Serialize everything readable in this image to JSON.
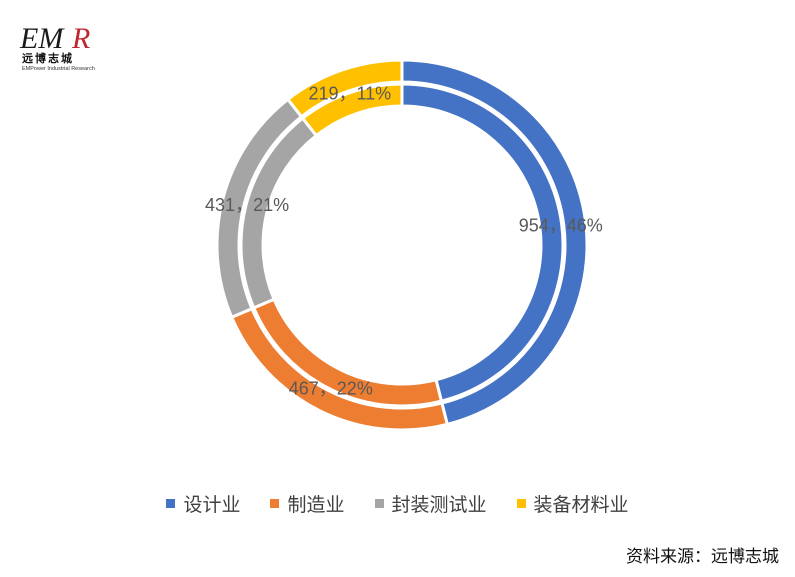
{
  "logo": {
    "mark_left": "EM",
    "mark_right": "R",
    "cn": "远博志城",
    "en": "EMPower Industrial Research",
    "colors": {
      "dark": "#1a1a1a",
      "accent": "#c0262d"
    }
  },
  "chart_data": {
    "type": "doughnut",
    "rings": 2,
    "categories": [
      "设计业",
      "制造业",
      "封装测试业",
      "装备材料业"
    ],
    "values": [
      954,
      467,
      431,
      219
    ],
    "percents": [
      46,
      22,
      21,
      11
    ],
    "labels": [
      "954，46%",
      "467，22%",
      "431，21%",
      "219，11%"
    ],
    "colors": [
      "#4472c4",
      "#ed7d31",
      "#a5a5a5",
      "#ffc000"
    ],
    "legend_position": "bottom",
    "title": ""
  },
  "source": "资料来源：远博志城"
}
